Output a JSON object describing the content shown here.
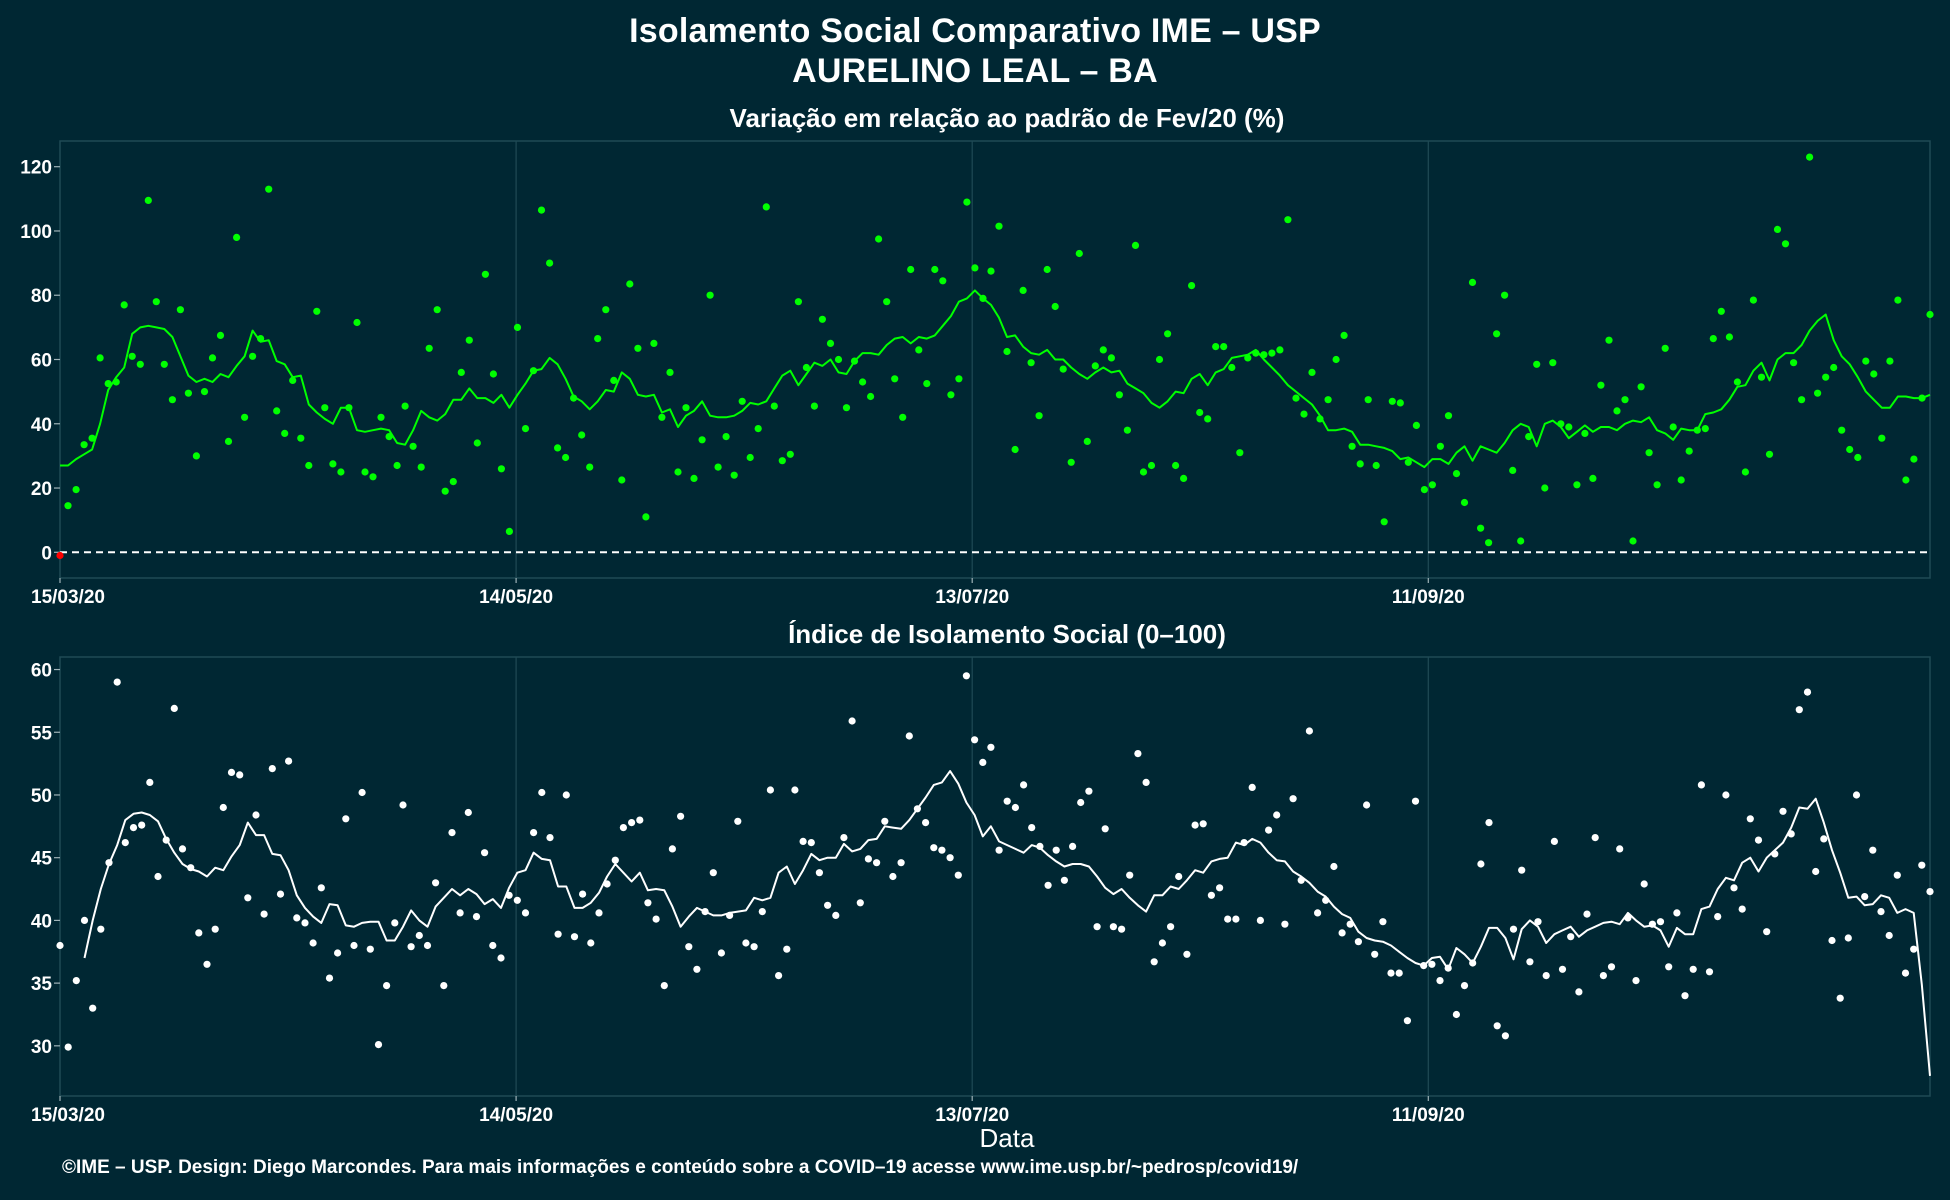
{
  "header": {
    "title": "Isolamento Social Comparativo IME – USP",
    "subtitle": "AURELINO LEAL – BA"
  },
  "footer": {
    "credit": "©IME – USP. Design: Diego Marcondes. Para mais informações e conteúdo sobre a COVID–19 acesse www.ime.usp.br/~pedrosp/covid19/"
  },
  "colors": {
    "background": "#002733",
    "panel_grid": "#1f4a55",
    "variation_series": "#00ff00",
    "index_series": "#ffffff",
    "negative_point": "#ff0000"
  },
  "chart_data": [
    {
      "type": "scatter",
      "title": "Variação em relação ao padrão de Fev/20 (%)",
      "xlabel": "",
      "ylabel": "",
      "x_start": "15/03/20",
      "x_end": "16/11/20",
      "x_tick_labels": [
        "15/03/20",
        "14/05/20",
        "13/07/20",
        "11/09/20"
      ],
      "y_ticks": [
        0,
        20,
        40,
        60,
        80,
        100,
        120
      ],
      "ylim": [
        -8,
        128
      ],
      "reference_line": 0,
      "grid": true,
      "series": [
        {
          "values": [
            -1,
            14.5,
            19.5,
            33.5,
            35.5,
            60.5,
            52.5,
            53,
            77,
            61,
            58.5,
            109.5,
            78,
            58.5,
            47.5,
            75.5,
            49.5,
            30,
            50,
            60.5,
            67.5,
            34.5,
            98,
            42,
            61,
            66.5,
            113,
            44,
            37,
            53.5,
            35.5,
            27,
            75,
            45,
            27.5,
            25,
            45,
            71.5,
            25,
            23.5,
            42,
            36,
            27,
            45.5,
            33,
            26.5,
            63.5,
            75.5,
            19,
            22,
            56,
            66,
            34,
            86.5,
            55.5,
            26,
            6.5,
            70,
            38.5,
            56.5,
            106.5,
            90,
            32.5,
            29.5,
            48,
            36.5,
            26.5,
            66.5,
            75.5,
            53.5,
            22.5,
            83.5,
            63.5,
            11,
            65,
            42,
            56,
            25,
            45,
            23,
            35,
            80,
            26.5,
            36,
            24,
            47,
            29.5,
            38.5,
            107.5,
            45.5,
            28.5,
            30.5,
            78,
            57.5,
            45.5,
            72.5,
            65,
            60,
            45,
            59.5,
            53,
            48.5,
            97.5,
            78,
            54,
            42,
            88,
            63,
            52.5,
            88,
            84.5,
            49,
            54,
            109,
            88.5,
            79,
            87.5,
            101.5,
            62.5,
            32,
            81.5,
            59,
            42.5,
            88,
            76.5,
            57,
            28,
            93,
            34.5,
            58,
            63,
            60.5,
            49,
            38,
            95.5,
            25,
            27,
            60,
            68,
            27,
            23,
            83,
            43.5,
            41.5,
            64,
            64,
            57.5,
            31,
            60.5,
            62,
            61.5,
            62,
            63,
            103.5,
            48,
            43,
            56,
            41.5,
            47.5,
            60,
            67.5,
            33,
            27.5,
            47.5,
            27,
            9.5,
            47,
            46.5,
            28,
            39.5,
            19.5,
            21,
            33,
            42.5,
            24.5,
            15.5,
            84,
            7.5,
            3,
            68,
            80,
            25.5,
            3.5,
            36,
            58.5,
            20,
            59,
            40,
            39,
            21,
            37,
            23,
            52,
            66,
            44,
            47.5,
            3.5,
            51.5,
            31,
            21,
            63.5,
            39,
            22.5,
            31.5,
            38,
            38.5,
            66.5,
            75,
            67,
            53,
            25,
            78.5,
            54.5,
            30.5,
            100.5,
            96,
            59,
            47.5,
            123,
            49.5,
            54.5,
            57.5,
            38,
            32,
            29.5,
            59.5,
            55.5,
            35.5,
            59.5,
            78.5,
            22.5,
            29,
            48,
            74
          ]
        },
        {
          "values": [
            27,
            27,
            29,
            30.5,
            32,
            40,
            50.5,
            54.5,
            57.5,
            68,
            70,
            70.5,
            70,
            69.5,
            67,
            61,
            55,
            53,
            54,
            53,
            55.5,
            54.5,
            58,
            61,
            69,
            65.5,
            66,
            59.5,
            58.5,
            54.5,
            55,
            46,
            43.5,
            41.5,
            40,
            45,
            45,
            38,
            37.5,
            38,
            38.5,
            38,
            34,
            33.5,
            38,
            44,
            42,
            41,
            43,
            47.5,
            47.5,
            51,
            48,
            48,
            46.5,
            49,
            45,
            49,
            52.5,
            56.5,
            57,
            60.5,
            58.5,
            54,
            48.5,
            47,
            44.5,
            47,
            50.5,
            50,
            56,
            54,
            49,
            48.5,
            49,
            43.5,
            44.5,
            39,
            42.5,
            44,
            47,
            42.5,
            42,
            42,
            42.5,
            44,
            46.5,
            46,
            47,
            51,
            55,
            56.5,
            52,
            55.5,
            59,
            58,
            60,
            56,
            55.5,
            59.5,
            62,
            62,
            61.5,
            64.5,
            66.5,
            67,
            65,
            67,
            66.5,
            67.5,
            70.5,
            73.5,
            78,
            79,
            81.5,
            79,
            77,
            73,
            67,
            67.5,
            64,
            62,
            61.5,
            63,
            60,
            60,
            57.5,
            55.5,
            54,
            56,
            57.5,
            56,
            56.5,
            52.5,
            51,
            49.5,
            46.5,
            45,
            47,
            50,
            49.5,
            54,
            55.5,
            52,
            56,
            57,
            60.5,
            61,
            61.5,
            63,
            60,
            57.5,
            55,
            52,
            50,
            48,
            46,
            42.5,
            38,
            38,
            38.5,
            37.5,
            33.5,
            33.5,
            33,
            32.5,
            31.5,
            29,
            29.5,
            28,
            26.5,
            29,
            29,
            27.5,
            31,
            33,
            28.5,
            33,
            32,
            31,
            34,
            38,
            40,
            39,
            33,
            40,
            41,
            39,
            35.5,
            37.5,
            39.5,
            37.5,
            39,
            39,
            38,
            40,
            41,
            40.5,
            42,
            38,
            37,
            35,
            38.5,
            38,
            38,
            43,
            43.5,
            44.5,
            47.5,
            51.5,
            52,
            56.5,
            59,
            53.5,
            60,
            62,
            62,
            64.5,
            69,
            72,
            74,
            66,
            61,
            58.5,
            54.5,
            50,
            47.5,
            45,
            45,
            48.5,
            48.5,
            48,
            48,
            49
          ]
        }
      ]
    },
    {
      "type": "scatter",
      "title": "Índice de Isolamento Social (0–100)",
      "xlabel": "Data",
      "ylabel": "",
      "x_start": "15/03/20",
      "x_end": "16/11/20",
      "x_tick_labels": [
        "15/03/20",
        "14/05/20",
        "13/07/20",
        "11/09/20"
      ],
      "y_ticks": [
        30,
        35,
        40,
        45,
        50,
        55,
        60
      ],
      "ylim": [
        26,
        61
      ],
      "grid": true,
      "series": [
        {
          "values": [
            38,
            29.9,
            35.2,
            40,
            33,
            39.3,
            44.6,
            59,
            46.2,
            47.4,
            47.6,
            51,
            43.5,
            46.4,
            56.9,
            45.7,
            44.2,
            39,
            36.5,
            39.3,
            49,
            51.8,
            51.6,
            41.8,
            48.4,
            40.5,
            52.1,
            42.1,
            52.7,
            40.2,
            39.8,
            38.2,
            42.6,
            35.4,
            37.4,
            48.1,
            38,
            50.2,
            37.7,
            30.1,
            34.8,
            39.8,
            49.2,
            37.9,
            38.8,
            38,
            43,
            34.8,
            47,
            40.6,
            48.6,
            40.3,
            45.4,
            38,
            37,
            42,
            41.6,
            40.6,
            47,
            50.2,
            46.6,
            38.9,
            50,
            38.7,
            42.1,
            38.2,
            40.6,
            42.9,
            44.8,
            47.4,
            47.8,
            48,
            41.4,
            40.1,
            34.8,
            45.7,
            48.3,
            37.9,
            36.1,
            40.7,
            43.8,
            37.4,
            40.4,
            47.9,
            38.2,
            37.9,
            40.7,
            50.4,
            35.6,
            37.7,
            50.4,
            46.3,
            46.2,
            43.8,
            41.2,
            40.4,
            46.6,
            55.9,
            41.4,
            44.9,
            44.6,
            47.9,
            43.5,
            44.6,
            54.7,
            48.9,
            47.8,
            45.8,
            45.6,
            45,
            43.6,
            59.5,
            54.4,
            52.6,
            53.8,
            45.6,
            49.5,
            49,
            50.8,
            47.4,
            45.9,
            42.8,
            45.6,
            43.2,
            45.9,
            49.4,
            50.3,
            39.5,
            47.3,
            39.5,
            39.3,
            43.6,
            53.3,
            51,
            36.7,
            38.2,
            39.5,
            43.5,
            37.3,
            47.6,
            47.7,
            42,
            42.6,
            40.1,
            40.1,
            46.2,
            50.6,
            40,
            47.2,
            48.4,
            39.7,
            49.7,
            43.2,
            55.1,
            40.6,
            41.6,
            44.3,
            39,
            39.7,
            38.3,
            49.2,
            37.3,
            39.9,
            35.8,
            35.8,
            32,
            49.5,
            36.4,
            36.5,
            35.2,
            36.2,
            32.5,
            34.8,
            36.6,
            44.5,
            47.8,
            31.6,
            30.8,
            39.3,
            44,
            36.7,
            39.9,
            35.6,
            46.3,
            36.1,
            38.7,
            34.3,
            40.5,
            46.6,
            35.6,
            36.3,
            45.7,
            40.2,
            35.2,
            42.9,
            39.7,
            39.9,
            36.3,
            40.6,
            34,
            36.1,
            50.8,
            35.9,
            40.3,
            50,
            42.6,
            40.9,
            48.1,
            46.4,
            39.1,
            45.3,
            48.7,
            46.9,
            56.8,
            58.2,
            43.9,
            46.5,
            38.4,
            33.8,
            38.6,
            50,
            41.9,
            45.6,
            40.7,
            38.8,
            43.6,
            35.8,
            37.7,
            44.4,
            42.3
          ]
        },
        {
          "values": [
            null,
            null,
            null,
            37,
            40,
            42.5,
            44.5,
            46,
            48,
            48.5,
            48.6,
            48.4,
            47.9,
            46.5,
            45.4,
            44.5,
            44.1,
            43.9,
            43.5,
            44.2,
            44,
            45.1,
            46,
            47.8,
            46.8,
            46.8,
            45.3,
            45.2,
            44,
            42,
            41,
            40.3,
            39.8,
            41.3,
            41.2,
            39.6,
            39.5,
            39.8,
            39.9,
            39.9,
            38.4,
            38.4,
            39.5,
            40.8,
            40,
            39.5,
            41.1,
            41.8,
            42.5,
            42,
            42.5,
            42.1,
            41.3,
            41.7,
            41,
            42.6,
            43.8,
            44,
            45.4,
            44.9,
            44.8,
            42.7,
            42.7,
            41,
            41,
            41.4,
            42.2,
            43.5,
            44.5,
            43.8,
            43.1,
            43.8,
            42.4,
            42.5,
            42.4,
            41.1,
            39.5,
            40.3,
            41,
            40.7,
            40.4,
            40.4,
            40.6,
            40.7,
            40.8,
            41.8,
            41.6,
            41.8,
            43.8,
            44.3,
            42.9,
            44,
            45.3,
            44.8,
            45,
            45,
            46.1,
            45.5,
            45.7,
            46.4,
            46.5,
            47.5,
            47.4,
            47.3,
            48,
            48.9,
            49.8,
            50.8,
            51,
            51.9,
            50.9,
            49.4,
            48.4,
            46.7,
            47.5,
            46.3,
            46,
            45.7,
            45.4,
            46,
            45.8,
            45.2,
            44.7,
            44.3,
            44.5,
            44.5,
            44.3,
            43.5,
            42.6,
            42.1,
            42.5,
            41.8,
            41.2,
            40.7,
            42,
            42,
            42.7,
            42.5,
            43.2,
            44,
            43.8,
            44.7,
            44.9,
            45,
            46.2,
            46,
            46.5,
            46.2,
            45.4,
            44.8,
            44.7,
            43.9,
            43.5,
            43,
            42.3,
            41.9,
            41.1,
            40.5,
            40.2,
            39.1,
            38.6,
            38.4,
            38.3,
            38,
            37.5,
            37,
            36.6,
            36.4,
            37,
            37.1,
            36.1,
            37.8,
            37.3,
            36.6,
            37.9,
            39.4,
            39.4,
            38.6,
            36.9,
            39.3,
            40,
            39.5,
            38.2,
            38.9,
            39.2,
            39.5,
            38.7,
            39.2,
            39.5,
            39.8,
            39.9,
            39.7,
            40.6,
            40,
            39.5,
            39.6,
            39.2,
            37.9,
            39.4,
            38.9,
            38.9,
            40.9,
            41.1,
            42.5,
            43.4,
            43.2,
            44.6,
            45,
            43.9,
            45,
            45.6,
            46.2,
            47.4,
            49,
            48.9,
            49.7,
            47.8,
            45.6,
            43.8,
            41.8,
            41.9,
            41.2,
            41.3,
            42,
            41.8,
            40.6,
            40.9,
            40.6,
            34.9,
            27.6
          ]
        }
      ]
    }
  ]
}
